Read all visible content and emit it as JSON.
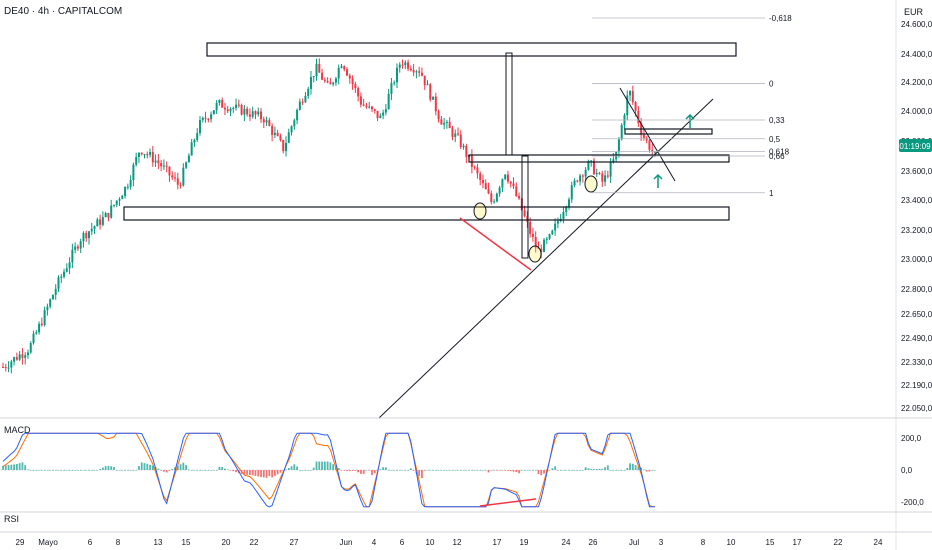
{
  "header": {
    "title": "DE40 · 4h · CAPITALCOM",
    "currency": "EUR"
  },
  "price_label": {
    "value": "01:19:09"
  },
  "panes": {
    "macd_label": "MACD",
    "rsi_label": "RSI"
  },
  "colors": {
    "up": "#089981",
    "down": "#f23645",
    "price_badge": "#089981",
    "macd_line": "#2962ff",
    "signal_line": "#ff6d00",
    "divergence": "#f23645",
    "arrow": "#089981"
  },
  "chart_data": [
    {
      "type": "candlestick",
      "symbol": "DE40",
      "timeframe": "4h",
      "ylim": [
        22050,
        24750
      ],
      "y_ticks": [
        "24.600,0",
        "24.400,0",
        "24.200,0",
        "24.000,0",
        "23.800,0",
        "23.600,0",
        "23.400,0",
        "23.200,0",
        "23.000,0",
        "22.800,0",
        "22.650,0",
        "22.490,0",
        "22.330,0",
        "22.190,0",
        "22.050,0"
      ],
      "x_ticks": [
        "29",
        "Mayo",
        "6",
        "8",
        "13",
        "15",
        "20",
        "22",
        "27",
        "Jun",
        "4",
        "6",
        "10",
        "12",
        "17",
        "19",
        "24",
        "26",
        "Jul",
        "3",
        "8",
        "10",
        "15",
        "17",
        "22",
        "24"
      ],
      "fib_levels": [
        {
          "label": "-0,618",
          "value": 24640
        },
        {
          "label": "0",
          "value": 24190
        },
        {
          "label": "0,33",
          "value": 23940
        },
        {
          "label": "0,5",
          "value": 23815
        },
        {
          "label": "0,618",
          "value": 23730
        },
        {
          "label": "0,66",
          "value": 23700
        },
        {
          "label": "1",
          "value": 23450
        }
      ],
      "anchors": [
        {
          "x": 0,
          "y": 22300
        },
        {
          "x": 0.04,
          "y": 22420
        },
        {
          "x": 0.08,
          "y": 22800
        },
        {
          "x": 0.12,
          "y": 23150
        },
        {
          "x": 0.16,
          "y": 23300
        },
        {
          "x": 0.19,
          "y": 23500
        },
        {
          "x": 0.21,
          "y": 23750
        },
        {
          "x": 0.24,
          "y": 23650
        },
        {
          "x": 0.27,
          "y": 23500
        },
        {
          "x": 0.3,
          "y": 23900
        },
        {
          "x": 0.33,
          "y": 24050
        },
        {
          "x": 0.37,
          "y": 24000
        },
        {
          "x": 0.4,
          "y": 23950
        },
        {
          "x": 0.43,
          "y": 23750
        },
        {
          "x": 0.455,
          "y": 24050
        },
        {
          "x": 0.48,
          "y": 24300
        },
        {
          "x": 0.5,
          "y": 24150
        },
        {
          "x": 0.52,
          "y": 24350
        },
        {
          "x": 0.55,
          "y": 24050
        },
        {
          "x": 0.58,
          "y": 23950
        },
        {
          "x": 0.61,
          "y": 24350
        },
        {
          "x": 0.64,
          "y": 24280
        },
        {
          "x": 0.67,
          "y": 23950
        },
        {
          "x": 0.7,
          "y": 23800
        },
        {
          "x": 0.73,
          "y": 23550
        },
        {
          "x": 0.75,
          "y": 23380
        },
        {
          "x": 0.77,
          "y": 23600
        },
        {
          "x": 0.79,
          "y": 23400
        },
        {
          "x": 0.82,
          "y": 23050
        },
        {
          "x": 0.84,
          "y": 23150
        },
        {
          "x": 0.86,
          "y": 23350
        },
        {
          "x": 0.88,
          "y": 23550
        },
        {
          "x": 0.9,
          "y": 23650
        },
        {
          "x": 0.92,
          "y": 23520
        },
        {
          "x": 0.94,
          "y": 23700
        },
        {
          "x": 0.96,
          "y": 24150
        },
        {
          "x": 0.98,
          "y": 23850
        },
        {
          "x": 1.0,
          "y": 23700
        }
      ]
    },
    {
      "type": "macd",
      "ylim": [
        -250,
        250
      ],
      "y_ticks": [
        "200,0",
        "0,0",
        "-200,0"
      ]
    }
  ]
}
